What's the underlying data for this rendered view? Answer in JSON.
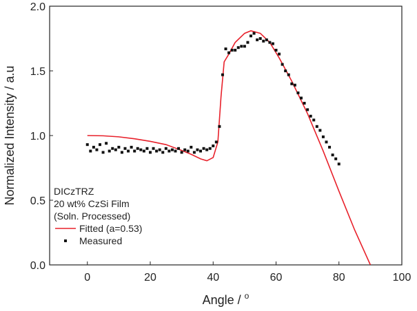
{
  "chart_data": {
    "type": "scatter",
    "title": "",
    "xlabel": "Angle / ",
    "xlabel_superscript": "o",
    "ylabel": "Normalized Intensity / a.u",
    "xlim": [
      -12,
      100
    ],
    "ylim": [
      0.0,
      2.0
    ],
    "xticks": [
      0,
      20,
      40,
      60,
      80,
      100
    ],
    "yticks": [
      0.0,
      0.5,
      1.0,
      1.5,
      2.0
    ],
    "ytick_labels": [
      "0.0",
      "0.5",
      "1.0",
      "1.5",
      "2.0"
    ],
    "grid": false,
    "legend_position": "bottom-left",
    "legend_header": [
      "DICzTRZ",
      "20 wt% CzSi Film",
      "(Soln. Processed)"
    ],
    "series": [
      {
        "name": "Fitted (a=0.53)",
        "kind": "line",
        "color": "#e8202a",
        "x": [
          0,
          5,
          10,
          15,
          20,
          25,
          30,
          33,
          36,
          38,
          40,
          41.5,
          42.5,
          43.5,
          45,
          47,
          50,
          52,
          55,
          58,
          61,
          65,
          70,
          75,
          80,
          85,
          90
        ],
        "y": [
          1.0,
          0.998,
          0.99,
          0.975,
          0.955,
          0.93,
          0.885,
          0.855,
          0.82,
          0.805,
          0.83,
          0.95,
          1.3,
          1.57,
          1.63,
          1.72,
          1.79,
          1.81,
          1.79,
          1.72,
          1.6,
          1.42,
          1.17,
          0.88,
          0.57,
          0.27,
          0.0
        ]
      },
      {
        "name": "Measured",
        "kind": "scatter",
        "color": "#111111",
        "x": [
          0,
          1,
          2,
          3,
          4,
          5,
          6,
          7,
          8,
          9,
          10,
          11,
          12,
          13,
          14,
          15,
          16,
          17,
          18,
          19,
          20,
          21,
          22,
          23,
          24,
          25,
          26,
          27,
          28,
          29,
          30,
          31,
          32,
          33,
          34,
          35,
          36,
          37,
          38,
          39,
          40,
          41,
          42,
          43,
          44,
          45,
          46,
          47,
          48,
          49,
          50,
          51,
          52,
          53,
          54,
          55,
          56,
          57,
          58,
          59,
          60,
          61,
          62,
          63,
          64,
          65,
          66,
          67,
          68,
          69,
          70,
          71,
          72,
          73,
          74,
          75,
          76,
          77,
          78,
          79,
          80
        ],
        "y": [
          0.93,
          0.88,
          0.91,
          0.89,
          0.93,
          0.87,
          0.94,
          0.88,
          0.9,
          0.89,
          0.91,
          0.87,
          0.9,
          0.88,
          0.91,
          0.88,
          0.9,
          0.89,
          0.88,
          0.9,
          0.87,
          0.9,
          0.88,
          0.89,
          0.87,
          0.9,
          0.88,
          0.89,
          0.88,
          0.9,
          0.87,
          0.89,
          0.88,
          0.91,
          0.87,
          0.89,
          0.88,
          0.9,
          0.89,
          0.9,
          0.92,
          0.95,
          1.07,
          1.47,
          1.67,
          1.64,
          1.66,
          1.66,
          1.68,
          1.69,
          1.69,
          1.72,
          1.77,
          1.79,
          1.74,
          1.75,
          1.73,
          1.74,
          1.72,
          1.71,
          1.66,
          1.63,
          1.55,
          1.5,
          1.47,
          1.4,
          1.39,
          1.33,
          1.29,
          1.25,
          1.2,
          1.15,
          1.12,
          1.07,
          1.04,
          0.99,
          0.95,
          0.91,
          0.85,
          0.82,
          0.78
        ]
      }
    ]
  }
}
